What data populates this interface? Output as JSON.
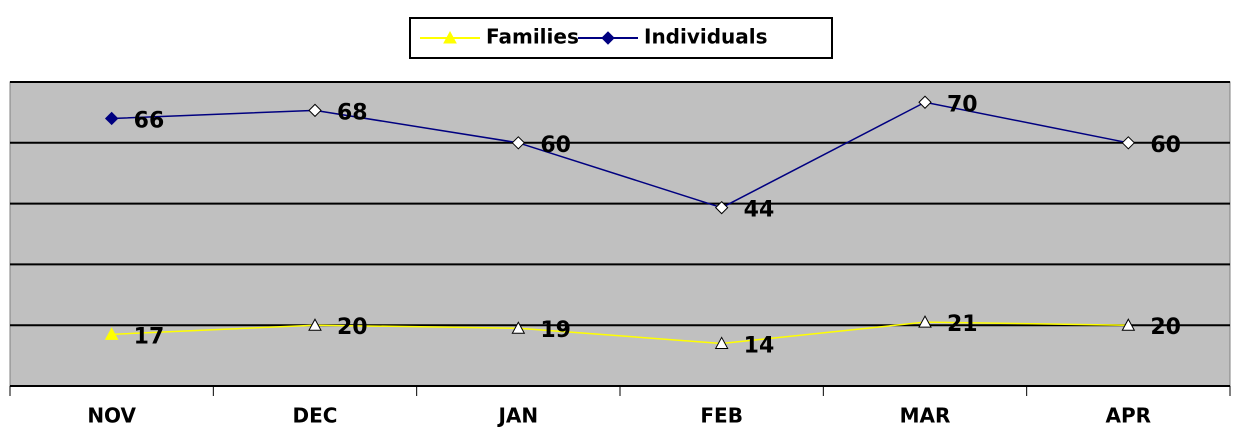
{
  "chart_data": {
    "type": "line",
    "categories": [
      "NOV",
      "DEC",
      "JAN",
      "FEB",
      "MAR",
      "APR"
    ],
    "series": [
      {
        "name": "Families",
        "color": "#ffff00",
        "values": [
          17,
          20,
          19,
          14,
          21,
          20
        ]
      },
      {
        "name": "Individuals",
        "color": "#000080",
        "axis": "y2",
        "values": [
          66,
          68,
          60,
          44,
          70,
          60
        ]
      }
    ],
    "ylim": [
      0,
      100
    ],
    "yticks": [
      0,
      20,
      40,
      60,
      80,
      100
    ],
    "y2lim": [
      0,
      75
    ],
    "grid": true,
    "legend": "top"
  }
}
